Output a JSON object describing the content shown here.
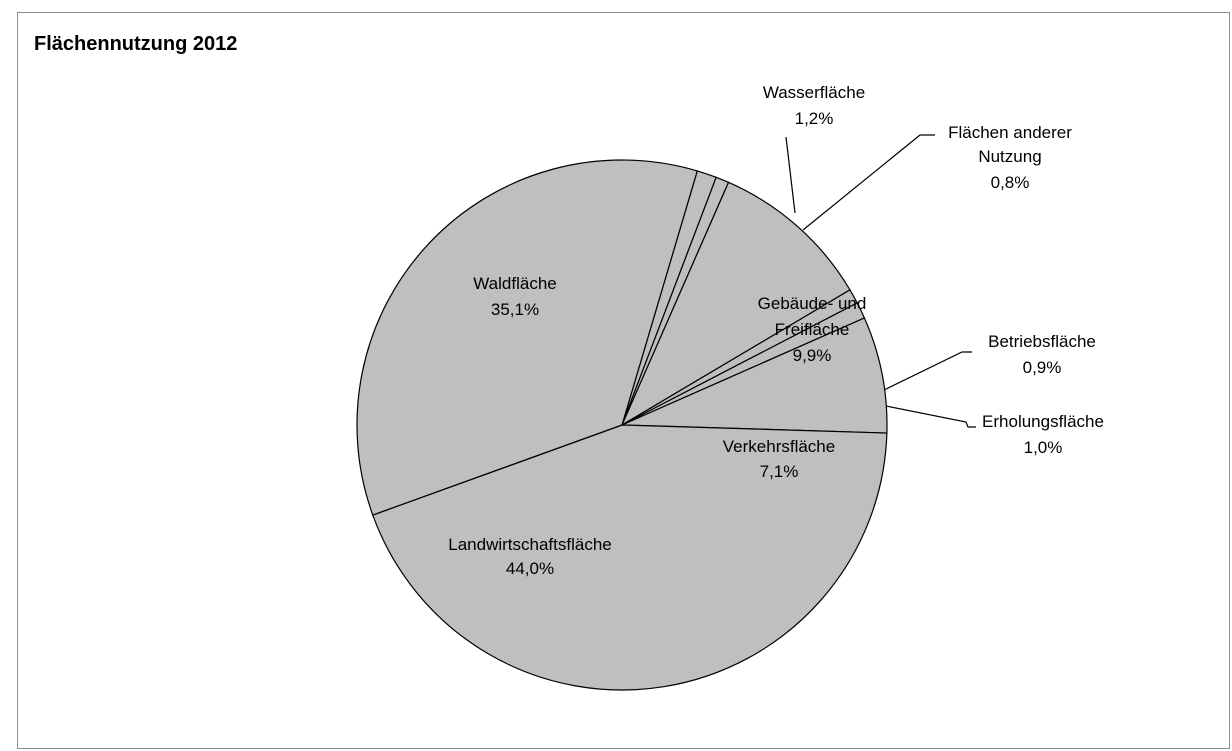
{
  "chart_data": {
    "type": "pie",
    "title": "Flächennutzung 2012",
    "colors": {
      "slice_fill": "#bfbfbf",
      "slice_stroke": "#000000",
      "frame": "#8c8c8c"
    },
    "slices": [
      {
        "name": "Wasserfläche",
        "value": 1.2,
        "label": "1,2%"
      },
      {
        "name": "Flächen anderer Nutzung",
        "value": 0.8,
        "label": "0,8%"
      },
      {
        "name": "Gebäude- und Freifläche",
        "value": 9.9,
        "label": "9,9%"
      },
      {
        "name": "Betriebsfläche",
        "value": 0.9,
        "label": "0,9%"
      },
      {
        "name": "Erholungsfläche",
        "value": 1.0,
        "label": "1,0%"
      },
      {
        "name": "Verkehrsfläche",
        "value": 7.1,
        "label": "7,1%"
      },
      {
        "name": "Landwirtschaftsfläche",
        "value": 44.0,
        "label": "44,0%"
      },
      {
        "name": "Waldfläche",
        "value": 35.1,
        "label": "35,1%"
      }
    ]
  }
}
